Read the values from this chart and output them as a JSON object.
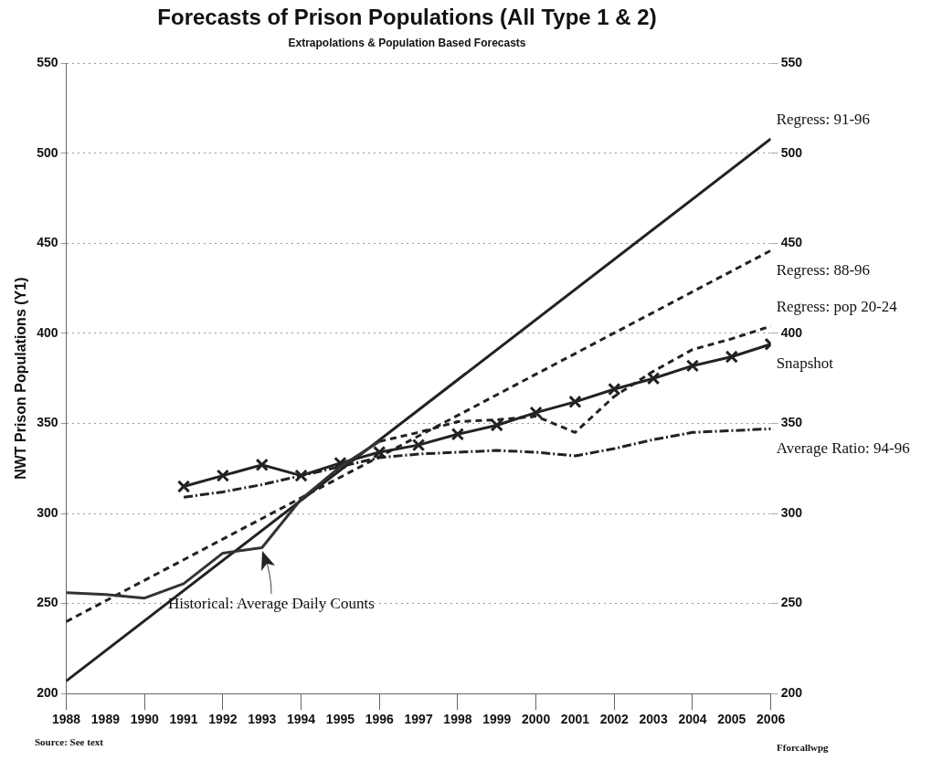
{
  "chart_data": {
    "type": "line",
    "title": "Forecasts of Prison Populations (All Type 1 & 2)",
    "subtitle": "Extrapolations & Population Based Forecasts",
    "ylabel": "NWT Prison Populations (Y1)",
    "xlim": [
      1988,
      2006
    ],
    "xticks": [
      1988,
      1989,
      1990,
      1991,
      1992,
      1993,
      1994,
      1995,
      1996,
      1997,
      1998,
      1999,
      2000,
      2001,
      2002,
      2003,
      2004,
      2005,
      2006
    ],
    "ylim": [
      200,
      550
    ],
    "yticks": [
      200,
      250,
      300,
      350,
      400,
      450,
      500,
      550
    ],
    "y2lim": [
      200,
      550
    ],
    "y2ticks": [
      200,
      250,
      300,
      350,
      400,
      450,
      500,
      550
    ],
    "grid": "y",
    "legend": false,
    "series": [
      {
        "name": "Historical: Average Daily Counts",
        "color": "#333333",
        "line_style": "solid",
        "marker": "none",
        "x": [
          1988,
          1989,
          1990,
          1991,
          1992,
          1993,
          1994,
          1995,
          1996
        ],
        "values": [
          256,
          255,
          253,
          261,
          278,
          281,
          308,
          326,
          340
        ]
      },
      {
        "name": "Regress: 91-96",
        "color": "#222222",
        "line_style": "solid",
        "marker": "none",
        "x": [
          1988,
          2006
        ],
        "values": [
          207,
          508
        ]
      },
      {
        "name": "Regress: 88-96",
        "color": "#222222",
        "line_style": "dashed",
        "marker": "none",
        "x": [
          1988,
          2006
        ],
        "values": [
          240,
          446
        ]
      },
      {
        "name": "Regress: pop 20-24",
        "color": "#222222",
        "line_style": "dashed",
        "marker": "none",
        "x": [
          1996,
          1997,
          1998,
          1999,
          2000,
          2001,
          2002,
          2003,
          2004,
          2005,
          2006
        ],
        "values": [
          340,
          345,
          351,
          352,
          354,
          345,
          365,
          379,
          391,
          397,
          404
        ]
      },
      {
        "name": "Snapshot",
        "color": "#222222",
        "line_style": "solid",
        "marker": "cross",
        "x": [
          1991,
          1992,
          1993,
          1994,
          1995,
          1996,
          1997,
          1998,
          1999,
          2000,
          2001,
          2002,
          2003,
          2004,
          2005,
          2006
        ],
        "values": [
          315,
          321,
          327,
          321,
          328,
          334,
          338,
          344,
          349,
          356,
          362,
          369,
          375,
          382,
          387,
          394
        ]
      },
      {
        "name": "Average Ratio: 94-96",
        "color": "#222222",
        "line_style": "dotted",
        "marker": "none",
        "x": [
          1991,
          1992,
          1993,
          1994,
          1995,
          1996,
          1997,
          1998,
          1999,
          2000,
          2001,
          2002,
          2003,
          2004,
          2005,
          2006
        ],
        "values": [
          309,
          312,
          316,
          321,
          326,
          331,
          333,
          334,
          335,
          334,
          332,
          336,
          341,
          345,
          346,
          347
        ]
      }
    ],
    "annotations": [
      "Source: See text",
      "Fforcallwpg"
    ]
  }
}
